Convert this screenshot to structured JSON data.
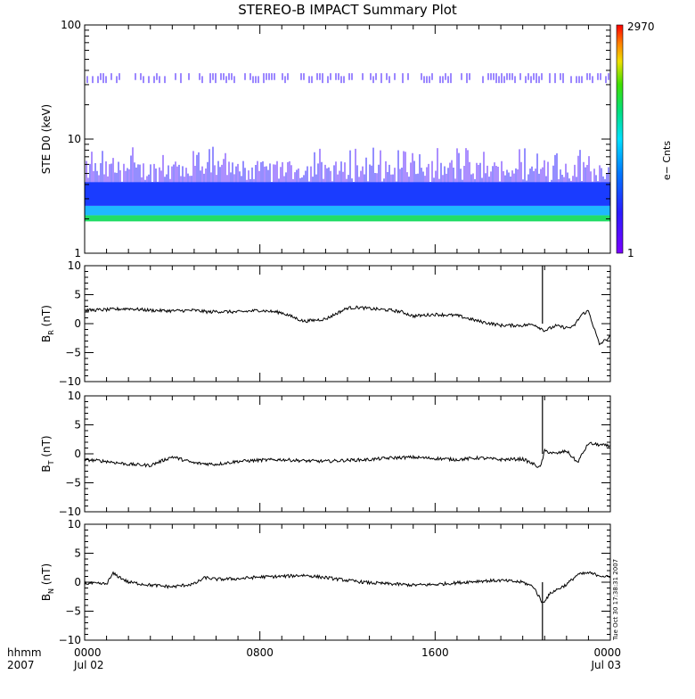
{
  "chart_data": [
    {
      "type": "heatmap",
      "title": "STEREO-B IMPACT Summary Plot",
      "ylabel": "STE D0 (keV)",
      "yscale": "log",
      "ylim": [
        1,
        100
      ],
      "yticks": [
        "1",
        "10",
        "100"
      ],
      "colorbar": {
        "label": "e− Cnts",
        "min_label": "1",
        "max_label": "2970",
        "min": 1,
        "max": 2970
      },
      "bands": [
        {
          "energy_keV": [
            1.9,
            2.15
          ],
          "level": "high",
          "color": "#22dd66"
        },
        {
          "energy_keV": [
            2.15,
            2.6
          ],
          "level": "medium",
          "color": "#1fb8ff"
        },
        {
          "energy_keV": [
            2.6,
            4.2
          ],
          "level": "low",
          "color": "#1a3cff"
        },
        {
          "energy_keV": [
            4.2,
            7.0
          ],
          "level": "sparse",
          "color": "#5a1fff"
        }
      ],
      "sparse_channels_keV": [
        33,
        35
      ]
    },
    {
      "type": "line",
      "ylabel_main": "B",
      "ylabel_sub": "R",
      "ylabel_unit": " (nT)",
      "ylim": [
        -10,
        10
      ],
      "yticks": [
        "10",
        "5",
        "0",
        "−5",
        "−10"
      ],
      "x": [
        0,
        1,
        2,
        3,
        4,
        5,
        5.7,
        6,
        7,
        8,
        9,
        10,
        11,
        12,
        12.5,
        13,
        14,
        14.5,
        15,
        16,
        17,
        18,
        19,
        20,
        20.5,
        21,
        21.5,
        22,
        22.3,
        22.7,
        23,
        23.5,
        24
      ],
      "values": [
        2.3,
        2.4,
        2.6,
        2.3,
        2.2,
        2.3,
        2.0,
        2.1,
        2.0,
        2.3,
        1.9,
        0.4,
        0.8,
        2.7,
        2.8,
        2.6,
        2.3,
        2.0,
        1.3,
        1.6,
        1.4,
        0.4,
        -0.3,
        -0.3,
        -0.1,
        -1.2,
        -0.4,
        -0.7,
        -0.6,
        1.6,
        2.2,
        -3.6,
        -2.2
      ],
      "spikes": [
        {
          "x": 20.9,
          "value": 10
        }
      ]
    },
    {
      "type": "line",
      "ylabel_main": "B",
      "ylabel_sub": "T",
      "ylabel_unit": " (nT)",
      "ylim": [
        -10,
        10
      ],
      "yticks": [
        "10",
        "5",
        "0",
        "−5",
        "−10"
      ],
      "x": [
        0,
        1,
        2,
        3,
        4,
        5,
        6,
        7,
        8,
        9,
        10,
        11,
        12,
        13,
        14,
        15,
        16,
        17,
        18,
        19,
        20,
        20.5,
        20.8,
        21,
        21.5,
        22,
        22.5,
        23,
        24
      ],
      "values": [
        -1.0,
        -1.3,
        -1.8,
        -2.0,
        -0.5,
        -1.6,
        -1.8,
        -1.3,
        -1.1,
        -1.0,
        -1.2,
        -1.3,
        -1.1,
        -1.0,
        -0.7,
        -0.6,
        -0.8,
        -1.0,
        -0.7,
        -1.0,
        -0.9,
        -1.8,
        -2.4,
        0.5,
        0.0,
        0.5,
        -1.5,
        1.8,
        1.3
      ],
      "spikes": [
        {
          "x": 20.9,
          "value": 10
        }
      ]
    },
    {
      "type": "line",
      "ylabel_main": "B",
      "ylabel_sub": "N",
      "ylabel_unit": " (nT)",
      "ylim": [
        -10,
        10
      ],
      "yticks": [
        "10",
        "5",
        "0",
        "−5",
        "−10"
      ],
      "x": [
        0,
        1,
        1.3,
        2,
        3,
        4,
        5,
        5.5,
        6,
        7,
        8,
        9,
        10,
        11,
        12,
        13,
        14,
        15,
        16,
        17,
        18,
        19,
        20,
        20.5,
        20.9,
        21.3,
        22,
        22.5,
        23,
        24
      ],
      "values": [
        -0.2,
        -0.3,
        1.5,
        0.0,
        -0.5,
        -0.8,
        -0.3,
        0.8,
        0.5,
        0.6,
        0.9,
        1.0,
        1.2,
        0.8,
        0.3,
        -0.1,
        -0.3,
        -0.5,
        -0.4,
        -0.1,
        0.2,
        0.3,
        0.0,
        -0.8,
        -3.6,
        -1.8,
        -0.4,
        1.3,
        1.6,
        0.8
      ],
      "spikes": [
        {
          "x": 20.9,
          "value": -10
        }
      ]
    }
  ],
  "xaxis": {
    "ticks": [
      "0000",
      "0800",
      "1600",
      "0000"
    ],
    "dates": [
      "Jul 02",
      "",
      "",
      "Jul 03"
    ],
    "left_label_top": "hhmm",
    "left_label_bottom": "2007"
  },
  "timestamp": "Tue Oct 30 17:38:31 2007"
}
